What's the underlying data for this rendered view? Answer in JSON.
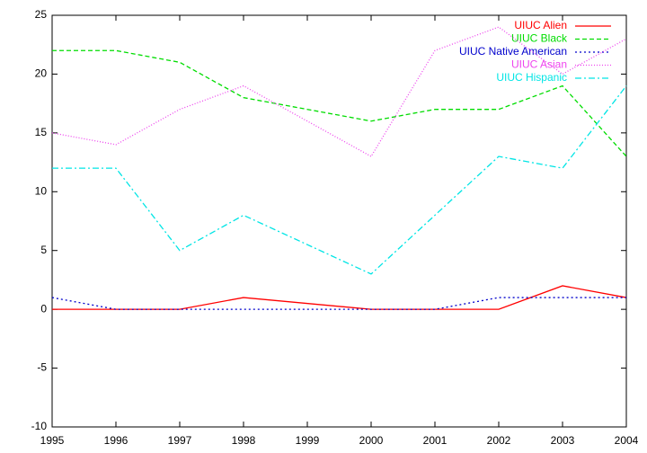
{
  "chart_data": {
    "type": "line",
    "x": [
      1995,
      1996,
      1997,
      1998,
      2000,
      2001,
      2002,
      2003,
      2004
    ],
    "series": [
      {
        "name": "UIUC Alien",
        "color": "#ff0000",
        "values": [
          0,
          0,
          0,
          1,
          0,
          0,
          0,
          2,
          1
        ]
      },
      {
        "name": "UIUC Black",
        "color": "#00dd00",
        "values": [
          22,
          22,
          21,
          18,
          16,
          17,
          17,
          19,
          13
        ]
      },
      {
        "name": "UIUC Native American",
        "color": "#0000cc",
        "values": [
          1,
          0,
          0,
          0,
          0,
          0,
          1,
          1,
          1
        ]
      },
      {
        "name": "UIUC Asian",
        "color": "#ee44ee",
        "values": [
          15,
          14,
          17,
          19,
          13,
          22,
          24,
          20,
          23
        ]
      },
      {
        "name": "UIUC Hispanic",
        "color": "#00e5e5",
        "values": [
          12,
          12,
          5,
          8,
          3,
          8,
          13,
          12,
          19
        ]
      }
    ],
    "xlim": [
      1995,
      2004
    ],
    "xticks": [
      1995,
      1996,
      1997,
      1998,
      1999,
      2000,
      2001,
      2002,
      2003,
      2004
    ],
    "ylim": [
      -10,
      25
    ],
    "yticks": [
      -10,
      -5,
      0,
      5,
      10,
      15,
      20,
      25
    ],
    "legend": "top-right"
  }
}
